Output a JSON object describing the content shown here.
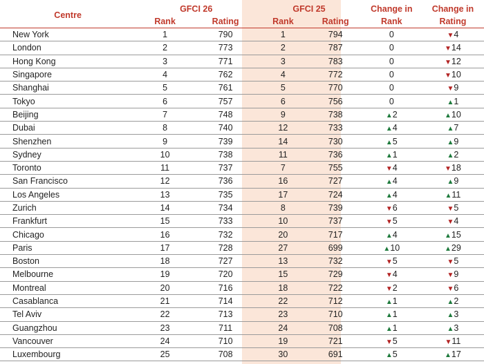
{
  "headers": {
    "centre": "Centre",
    "gfci26": "GFCI 26",
    "gfci25": "GFCI 25",
    "change_rank": "Change in Rank",
    "change_rating": "Change in Rating",
    "rank": "Rank",
    "rating": "Rating",
    "change_rank_l1": "Change in",
    "change_rank_l2": "Rank",
    "change_rating_l1": "Change in",
    "change_rating_l2": "Rating"
  },
  "rows": [
    {
      "centre": "New York",
      "rank26": "1",
      "rating26": "790",
      "rank25": "1",
      "rating25": "794",
      "chg_rank": "0",
      "chg_rank_dir": "",
      "chg_rating": "4",
      "chg_rating_dir": "down"
    },
    {
      "centre": "London",
      "rank26": "2",
      "rating26": "773",
      "rank25": "2",
      "rating25": "787",
      "chg_rank": "0",
      "chg_rank_dir": "",
      "chg_rating": "14",
      "chg_rating_dir": "down"
    },
    {
      "centre": "Hong Kong",
      "rank26": "3",
      "rating26": "771",
      "rank25": "3",
      "rating25": "783",
      "chg_rank": "0",
      "chg_rank_dir": "",
      "chg_rating": "12",
      "chg_rating_dir": "down"
    },
    {
      "centre": "Singapore",
      "rank26": "4",
      "rating26": "762",
      "rank25": "4",
      "rating25": "772",
      "chg_rank": "0",
      "chg_rank_dir": "",
      "chg_rating": "10",
      "chg_rating_dir": "down"
    },
    {
      "centre": "Shanghai",
      "rank26": "5",
      "rating26": "761",
      "rank25": "5",
      "rating25": "770",
      "chg_rank": "0",
      "chg_rank_dir": "",
      "chg_rating": "9",
      "chg_rating_dir": "down"
    },
    {
      "centre": "Tokyo",
      "rank26": "6",
      "rating26": "757",
      "rank25": "6",
      "rating25": "756",
      "chg_rank": "0",
      "chg_rank_dir": "",
      "chg_rating": "1",
      "chg_rating_dir": "up"
    },
    {
      "centre": "Beijing",
      "rank26": "7",
      "rating26": "748",
      "rank25": "9",
      "rating25": "738",
      "chg_rank": "2",
      "chg_rank_dir": "up",
      "chg_rating": "10",
      "chg_rating_dir": "up"
    },
    {
      "centre": "Dubai",
      "rank26": "8",
      "rating26": "740",
      "rank25": "12",
      "rating25": "733",
      "chg_rank": "4",
      "chg_rank_dir": "up",
      "chg_rating": "7",
      "chg_rating_dir": "up"
    },
    {
      "centre": "Shenzhen",
      "rank26": "9",
      "rating26": "739",
      "rank25": "14",
      "rating25": "730",
      "chg_rank": "5",
      "chg_rank_dir": "up",
      "chg_rating": "9",
      "chg_rating_dir": "up"
    },
    {
      "centre": "Sydney",
      "rank26": "10",
      "rating26": "738",
      "rank25": "11",
      "rating25": "736",
      "chg_rank": "1",
      "chg_rank_dir": "up",
      "chg_rating": "2",
      "chg_rating_dir": "up"
    },
    {
      "centre": "Toronto",
      "rank26": "11",
      "rating26": "737",
      "rank25": "7",
      "rating25": "755",
      "chg_rank": "4",
      "chg_rank_dir": "down",
      "chg_rating": "18",
      "chg_rating_dir": "down"
    },
    {
      "centre": "San Francisco",
      "rank26": "12",
      "rating26": "736",
      "rank25": "16",
      "rating25": "727",
      "chg_rank": "4",
      "chg_rank_dir": "up",
      "chg_rating": "9",
      "chg_rating_dir": "up"
    },
    {
      "centre": "Los Angeles",
      "rank26": "13",
      "rating26": "735",
      "rank25": "17",
      "rating25": "724",
      "chg_rank": "4",
      "chg_rank_dir": "up",
      "chg_rating": "11",
      "chg_rating_dir": "up"
    },
    {
      "centre": "Zurich",
      "rank26": "14",
      "rating26": "734",
      "rank25": "8",
      "rating25": "739",
      "chg_rank": "6",
      "chg_rank_dir": "down",
      "chg_rating": "5",
      "chg_rating_dir": "down"
    },
    {
      "centre": "Frankfurt",
      "rank26": "15",
      "rating26": "733",
      "rank25": "10",
      "rating25": "737",
      "chg_rank": "5",
      "chg_rank_dir": "down",
      "chg_rating": "4",
      "chg_rating_dir": "down"
    },
    {
      "centre": "Chicago",
      "rank26": "16",
      "rating26": "732",
      "rank25": "20",
      "rating25": "717",
      "chg_rank": "4",
      "chg_rank_dir": "up",
      "chg_rating": "15",
      "chg_rating_dir": "up"
    },
    {
      "centre": "Paris",
      "rank26": "17",
      "rating26": "728",
      "rank25": "27",
      "rating25": "699",
      "chg_rank": "10",
      "chg_rank_dir": "up",
      "chg_rating": "29",
      "chg_rating_dir": "up"
    },
    {
      "centre": "Boston",
      "rank26": "18",
      "rating26": "727",
      "rank25": "13",
      "rating25": "732",
      "chg_rank": "5",
      "chg_rank_dir": "down",
      "chg_rating": "5",
      "chg_rating_dir": "down"
    },
    {
      "centre": "Melbourne",
      "rank26": "19",
      "rating26": "720",
      "rank25": "15",
      "rating25": "729",
      "chg_rank": "4",
      "chg_rank_dir": "down",
      "chg_rating": "9",
      "chg_rating_dir": "down"
    },
    {
      "centre": "Montreal",
      "rank26": "20",
      "rating26": "716",
      "rank25": "18",
      "rating25": "722",
      "chg_rank": "2",
      "chg_rank_dir": "down",
      "chg_rating": "6",
      "chg_rating_dir": "down"
    },
    {
      "centre": "Casablanca",
      "rank26": "21",
      "rating26": "714",
      "rank25": "22",
      "rating25": "712",
      "chg_rank": "1",
      "chg_rank_dir": "up",
      "chg_rating": "2",
      "chg_rating_dir": "up"
    },
    {
      "centre": "Tel Aviv",
      "rank26": "22",
      "rating26": "713",
      "rank25": "23",
      "rating25": "710",
      "chg_rank": "1",
      "chg_rank_dir": "up",
      "chg_rating": "3",
      "chg_rating_dir": "up"
    },
    {
      "centre": "Guangzhou",
      "rank26": "23",
      "rating26": "711",
      "rank25": "24",
      "rating25": "708",
      "chg_rank": "1",
      "chg_rank_dir": "up",
      "chg_rating": "3",
      "chg_rating_dir": "up"
    },
    {
      "centre": "Vancouver",
      "rank26": "24",
      "rating26": "710",
      "rank25": "19",
      "rating25": "721",
      "chg_rank": "5",
      "chg_rank_dir": "down",
      "chg_rating": "11",
      "chg_rating_dir": "down"
    },
    {
      "centre": "Luxembourg",
      "rank26": "25",
      "rating26": "708",
      "rank25": "30",
      "rating25": "691",
      "chg_rank": "5",
      "chg_rank_dir": "up",
      "chg_rating": "17",
      "chg_rating_dir": "up"
    }
  ],
  "colors": {
    "header_text": "#c0392b",
    "up_arrow": "#1e7a3c",
    "down_arrow": "#b22222",
    "gfci25_shade": "#fbe6d9"
  },
  "icons": {
    "up": "▲",
    "down": "▼"
  }
}
